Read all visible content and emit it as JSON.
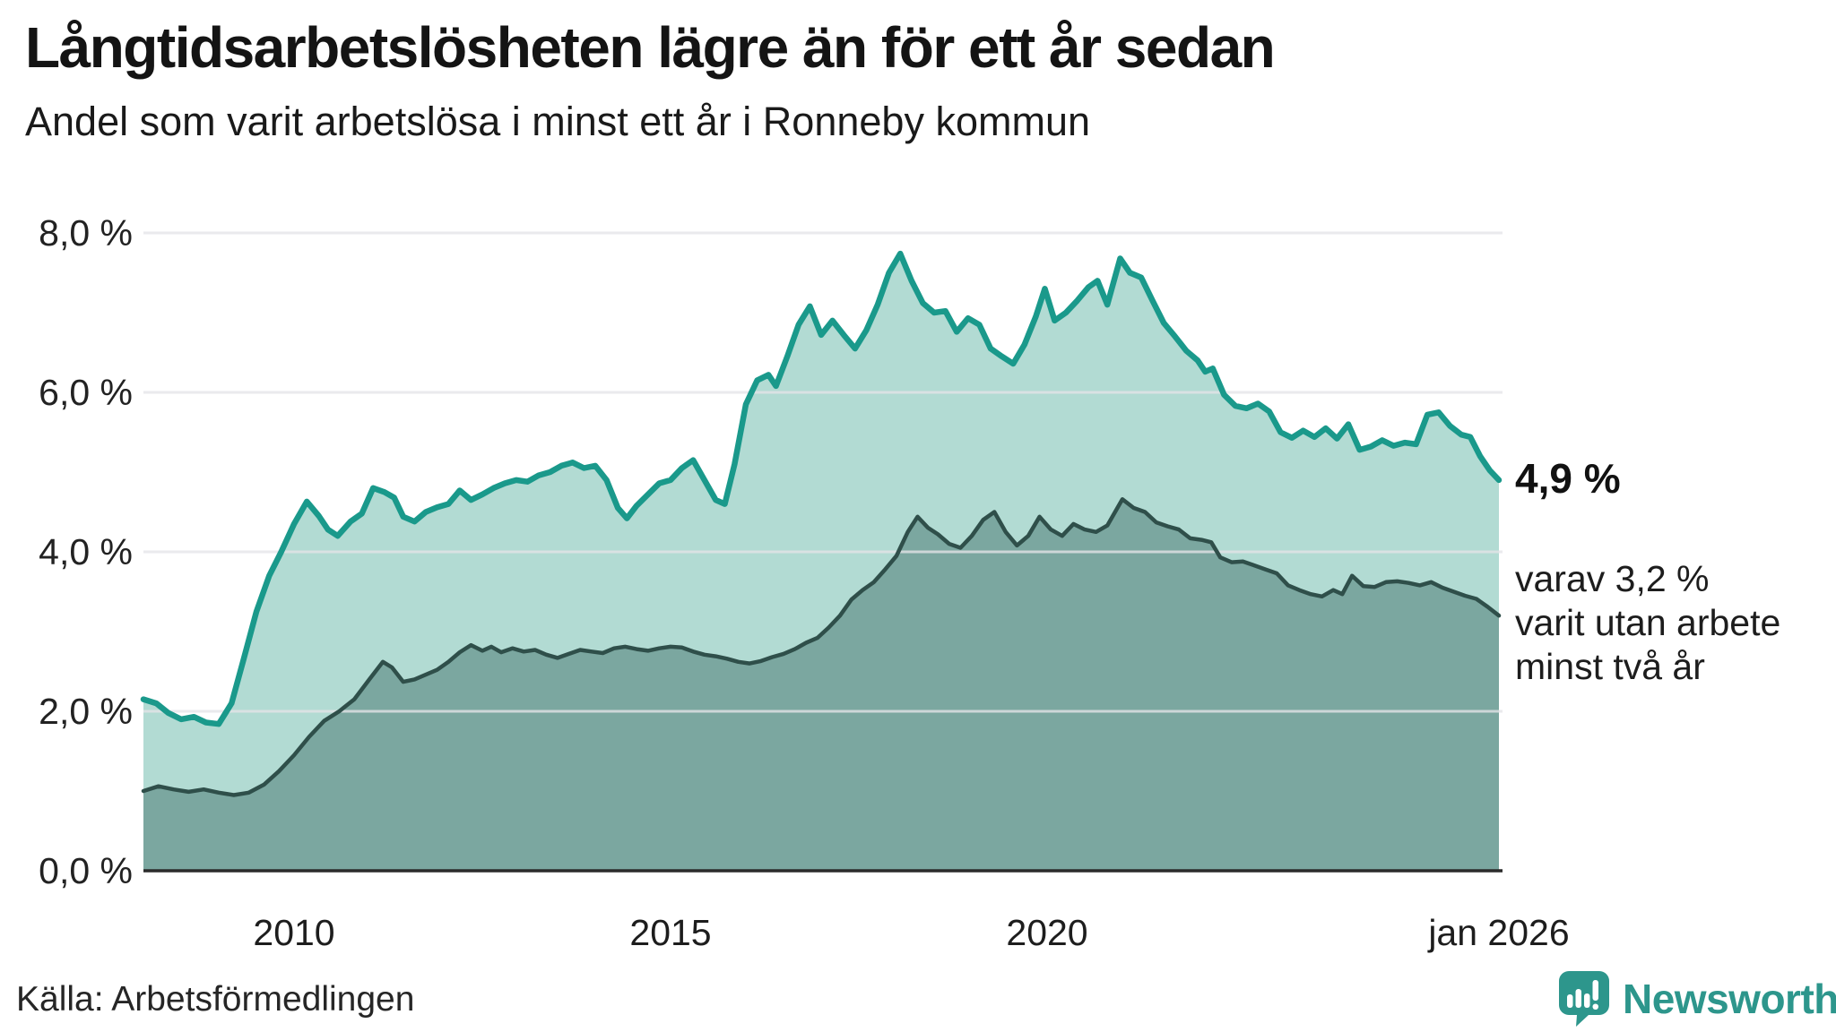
{
  "header": {
    "title": "Långtidsarbetslösheten lägre än för ett år sedan",
    "subtitle": "Andel som varit arbetslösa i minst ett år i Ronneby kommun"
  },
  "source": {
    "label": "Källa: Arbetsförmedlingen"
  },
  "branding": {
    "name": "Newsworthy",
    "icon": "newsworthy-speech-bubble-bar-chart-icon",
    "color": "#2D968C"
  },
  "colors": {
    "line_one_year": "#1A998B",
    "fill_one_year": "#B2DBD3",
    "line_two_year": "#2F4F4A",
    "fill_two_year": "#7BA7A0",
    "gridline": "#E4E4E8",
    "axis_line": "#2B2B2B",
    "text": "#1a1a1a"
  },
  "chart_data": {
    "type": "area",
    "title": "Långtidsarbetslösheten lägre än för ett år sedan",
    "subtitle": "Andel som varit arbetslösa i minst ett år i Ronneby kommun",
    "unit": "%",
    "xlabel": "",
    "ylabel": "",
    "x_range": [
      2008.0,
      2026.05
    ],
    "ylim": [
      0,
      8
    ],
    "grid": "horizontal",
    "legend_position": "annotations-right",
    "y_ticks": [
      {
        "value": 8,
        "label": "8,0 %"
      },
      {
        "value": 6,
        "label": "6,0 %"
      },
      {
        "value": 4,
        "label": "4,0 %"
      },
      {
        "value": 2,
        "label": "2,0 %"
      },
      {
        "value": 0,
        "label": "0,0 %"
      }
    ],
    "x_ticks": [
      {
        "year": 2010.0,
        "label": "2010"
      },
      {
        "year": 2015.0,
        "label": "2015"
      },
      {
        "year": 2020.0,
        "label": "2020"
      },
      {
        "year": 2026.0,
        "label": "jan 2026"
      }
    ],
    "series": [
      {
        "name": "Andel arbetslösa minst ett år",
        "end_label": "4,9 %",
        "end_value": 4.9,
        "points": [
          [
            2008.0,
            2.15
          ],
          [
            2008.17,
            2.1
          ],
          [
            2008.33,
            1.98
          ],
          [
            2008.5,
            1.9
          ],
          [
            2008.67,
            1.93
          ],
          [
            2008.83,
            1.86
          ],
          [
            2009.0,
            1.84
          ],
          [
            2009.17,
            2.1
          ],
          [
            2009.33,
            2.65
          ],
          [
            2009.5,
            3.25
          ],
          [
            2009.67,
            3.7
          ],
          [
            2009.83,
            4.0
          ],
          [
            2010.0,
            4.35
          ],
          [
            2010.17,
            4.63
          ],
          [
            2010.33,
            4.45
          ],
          [
            2010.45,
            4.28
          ],
          [
            2010.58,
            4.2
          ],
          [
            2010.75,
            4.38
          ],
          [
            2010.9,
            4.48
          ],
          [
            2011.05,
            4.8
          ],
          [
            2011.2,
            4.75
          ],
          [
            2011.33,
            4.68
          ],
          [
            2011.45,
            4.44
          ],
          [
            2011.6,
            4.38
          ],
          [
            2011.75,
            4.5
          ],
          [
            2011.9,
            4.56
          ],
          [
            2012.05,
            4.6
          ],
          [
            2012.2,
            4.77
          ],
          [
            2012.35,
            4.65
          ],
          [
            2012.5,
            4.72
          ],
          [
            2012.65,
            4.8
          ],
          [
            2012.8,
            4.86
          ],
          [
            2012.95,
            4.9
          ],
          [
            2013.1,
            4.88
          ],
          [
            2013.25,
            4.96
          ],
          [
            2013.4,
            5.0
          ],
          [
            2013.55,
            5.08
          ],
          [
            2013.7,
            5.12
          ],
          [
            2013.85,
            5.05
          ],
          [
            2014.0,
            5.08
          ],
          [
            2014.15,
            4.9
          ],
          [
            2014.3,
            4.55
          ],
          [
            2014.42,
            4.42
          ],
          [
            2014.55,
            4.58
          ],
          [
            2014.7,
            4.72
          ],
          [
            2014.85,
            4.86
          ],
          [
            2015.0,
            4.9
          ],
          [
            2015.15,
            5.05
          ],
          [
            2015.3,
            5.15
          ],
          [
            2015.45,
            4.9
          ],
          [
            2015.6,
            4.65
          ],
          [
            2015.72,
            4.6
          ],
          [
            2015.85,
            5.1
          ],
          [
            2016.0,
            5.85
          ],
          [
            2016.15,
            6.15
          ],
          [
            2016.3,
            6.22
          ],
          [
            2016.4,
            6.08
          ],
          [
            2016.55,
            6.45
          ],
          [
            2016.7,
            6.85
          ],
          [
            2016.85,
            7.08
          ],
          [
            2017.0,
            6.72
          ],
          [
            2017.15,
            6.9
          ],
          [
            2017.3,
            6.72
          ],
          [
            2017.45,
            6.55
          ],
          [
            2017.6,
            6.78
          ],
          [
            2017.75,
            7.1
          ],
          [
            2017.9,
            7.5
          ],
          [
            2018.05,
            7.74
          ],
          [
            2018.2,
            7.4
          ],
          [
            2018.35,
            7.12
          ],
          [
            2018.5,
            7.0
          ],
          [
            2018.65,
            7.02
          ],
          [
            2018.8,
            6.76
          ],
          [
            2018.95,
            6.93
          ],
          [
            2019.1,
            6.85
          ],
          [
            2019.25,
            6.55
          ],
          [
            2019.4,
            6.45
          ],
          [
            2019.55,
            6.36
          ],
          [
            2019.7,
            6.6
          ],
          [
            2019.85,
            6.95
          ],
          [
            2019.97,
            7.3
          ],
          [
            2020.1,
            6.9
          ],
          [
            2020.25,
            7.0
          ],
          [
            2020.4,
            7.15
          ],
          [
            2020.55,
            7.32
          ],
          [
            2020.67,
            7.4
          ],
          [
            2020.8,
            7.1
          ],
          [
            2020.97,
            7.68
          ],
          [
            2021.1,
            7.5
          ],
          [
            2021.25,
            7.44
          ],
          [
            2021.4,
            7.15
          ],
          [
            2021.55,
            6.87
          ],
          [
            2021.7,
            6.7
          ],
          [
            2021.85,
            6.52
          ],
          [
            2022.0,
            6.4
          ],
          [
            2022.1,
            6.26
          ],
          [
            2022.2,
            6.3
          ],
          [
            2022.35,
            5.97
          ],
          [
            2022.5,
            5.83
          ],
          [
            2022.65,
            5.8
          ],
          [
            2022.8,
            5.86
          ],
          [
            2022.95,
            5.76
          ],
          [
            2023.1,
            5.5
          ],
          [
            2023.25,
            5.43
          ],
          [
            2023.4,
            5.52
          ],
          [
            2023.55,
            5.44
          ],
          [
            2023.7,
            5.55
          ],
          [
            2023.85,
            5.42
          ],
          [
            2024.0,
            5.6
          ],
          [
            2024.15,
            5.28
          ],
          [
            2024.3,
            5.32
          ],
          [
            2024.45,
            5.4
          ],
          [
            2024.6,
            5.33
          ],
          [
            2024.75,
            5.37
          ],
          [
            2024.9,
            5.35
          ],
          [
            2025.05,
            5.72
          ],
          [
            2025.2,
            5.75
          ],
          [
            2025.35,
            5.58
          ],
          [
            2025.5,
            5.47
          ],
          [
            2025.62,
            5.44
          ],
          [
            2025.75,
            5.2
          ],
          [
            2025.88,
            5.02
          ],
          [
            2026.0,
            4.9
          ]
        ]
      },
      {
        "name": "Andel arbetslösa minst två år",
        "end_value": 3.2,
        "annotation_lines": [
          "varav 3,2 %",
          "varit utan arbete",
          "minst två år"
        ],
        "points": [
          [
            2008.0,
            1.0
          ],
          [
            2008.2,
            1.06
          ],
          [
            2008.4,
            1.02
          ],
          [
            2008.6,
            0.99
          ],
          [
            2008.8,
            1.02
          ],
          [
            2009.0,
            0.98
          ],
          [
            2009.2,
            0.95
          ],
          [
            2009.4,
            0.98
          ],
          [
            2009.6,
            1.08
          ],
          [
            2009.8,
            1.25
          ],
          [
            2010.0,
            1.45
          ],
          [
            2010.2,
            1.68
          ],
          [
            2010.4,
            1.88
          ],
          [
            2010.6,
            2.0
          ],
          [
            2010.8,
            2.15
          ],
          [
            2011.0,
            2.4
          ],
          [
            2011.18,
            2.62
          ],
          [
            2011.3,
            2.55
          ],
          [
            2011.45,
            2.37
          ],
          [
            2011.6,
            2.4
          ],
          [
            2011.75,
            2.46
          ],
          [
            2011.9,
            2.52
          ],
          [
            2012.05,
            2.62
          ],
          [
            2012.2,
            2.74
          ],
          [
            2012.35,
            2.83
          ],
          [
            2012.5,
            2.76
          ],
          [
            2012.62,
            2.81
          ],
          [
            2012.75,
            2.74
          ],
          [
            2012.9,
            2.79
          ],
          [
            2013.05,
            2.75
          ],
          [
            2013.2,
            2.77
          ],
          [
            2013.35,
            2.71
          ],
          [
            2013.5,
            2.67
          ],
          [
            2013.65,
            2.72
          ],
          [
            2013.8,
            2.77
          ],
          [
            2013.95,
            2.75
          ],
          [
            2014.1,
            2.73
          ],
          [
            2014.25,
            2.79
          ],
          [
            2014.4,
            2.81
          ],
          [
            2014.55,
            2.78
          ],
          [
            2014.7,
            2.76
          ],
          [
            2014.85,
            2.79
          ],
          [
            2015.0,
            2.81
          ],
          [
            2015.15,
            2.8
          ],
          [
            2015.3,
            2.75
          ],
          [
            2015.45,
            2.71
          ],
          [
            2015.6,
            2.69
          ],
          [
            2015.75,
            2.66
          ],
          [
            2015.9,
            2.62
          ],
          [
            2016.05,
            2.6
          ],
          [
            2016.2,
            2.63
          ],
          [
            2016.35,
            2.68
          ],
          [
            2016.5,
            2.72
          ],
          [
            2016.65,
            2.78
          ],
          [
            2016.8,
            2.86
          ],
          [
            2016.95,
            2.92
          ],
          [
            2017.1,
            3.05
          ],
          [
            2017.25,
            3.2
          ],
          [
            2017.4,
            3.4
          ],
          [
            2017.55,
            3.52
          ],
          [
            2017.7,
            3.62
          ],
          [
            2017.85,
            3.78
          ],
          [
            2018.0,
            3.95
          ],
          [
            2018.15,
            4.25
          ],
          [
            2018.28,
            4.44
          ],
          [
            2018.42,
            4.3
          ],
          [
            2018.55,
            4.22
          ],
          [
            2018.7,
            4.1
          ],
          [
            2018.85,
            4.05
          ],
          [
            2019.0,
            4.2
          ],
          [
            2019.15,
            4.4
          ],
          [
            2019.3,
            4.5
          ],
          [
            2019.45,
            4.25
          ],
          [
            2019.6,
            4.08
          ],
          [
            2019.75,
            4.2
          ],
          [
            2019.9,
            4.44
          ],
          [
            2020.05,
            4.28
          ],
          [
            2020.2,
            4.2
          ],
          [
            2020.35,
            4.35
          ],
          [
            2020.5,
            4.28
          ],
          [
            2020.65,
            4.25
          ],
          [
            2020.8,
            4.33
          ],
          [
            2021.0,
            4.66
          ],
          [
            2021.15,
            4.55
          ],
          [
            2021.3,
            4.5
          ],
          [
            2021.45,
            4.37
          ],
          [
            2021.6,
            4.32
          ],
          [
            2021.75,
            4.28
          ],
          [
            2021.9,
            4.17
          ],
          [
            2022.05,
            4.15
          ],
          [
            2022.18,
            4.12
          ],
          [
            2022.3,
            3.93
          ],
          [
            2022.45,
            3.87
          ],
          [
            2022.6,
            3.88
          ],
          [
            2022.75,
            3.83
          ],
          [
            2022.9,
            3.78
          ],
          [
            2023.05,
            3.73
          ],
          [
            2023.2,
            3.58
          ],
          [
            2023.35,
            3.52
          ],
          [
            2023.5,
            3.47
          ],
          [
            2023.65,
            3.44
          ],
          [
            2023.8,
            3.52
          ],
          [
            2023.92,
            3.47
          ],
          [
            2024.05,
            3.7
          ],
          [
            2024.2,
            3.57
          ],
          [
            2024.35,
            3.56
          ],
          [
            2024.5,
            3.62
          ],
          [
            2024.65,
            3.63
          ],
          [
            2024.8,
            3.61
          ],
          [
            2024.95,
            3.58
          ],
          [
            2025.1,
            3.62
          ],
          [
            2025.25,
            3.55
          ],
          [
            2025.4,
            3.5
          ],
          [
            2025.55,
            3.45
          ],
          [
            2025.7,
            3.41
          ],
          [
            2025.85,
            3.31
          ],
          [
            2026.0,
            3.2
          ]
        ]
      }
    ]
  }
}
